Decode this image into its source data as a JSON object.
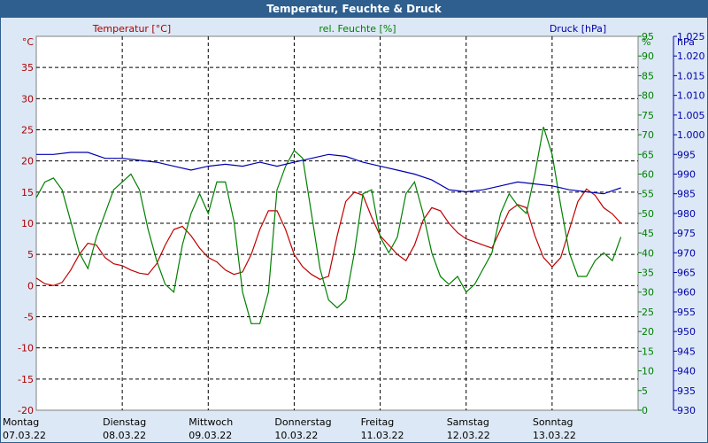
{
  "window": {
    "title": "Temperatur, Feuchte & Druck"
  },
  "chart_data": {
    "type": "line",
    "title": "Temperatur, Feuchte & Druck",
    "legend": {
      "temperature": "Temperatur [°C]",
      "humidity": "rel. Feuchte [%]",
      "pressure": "Druck [hPa]"
    },
    "axes": {
      "temperature": {
        "unit": "°C",
        "min": -20,
        "max": 40,
        "step": 5,
        "color": "#aa0000"
      },
      "humidity": {
        "unit": "%",
        "min": 0,
        "max": 95,
        "step": 5,
        "color": "#008000"
      },
      "pressure": {
        "unit": "hPa",
        "min": 930,
        "max": 1025,
        "step": 5,
        "color": "#0000aa"
      }
    },
    "days": [
      {
        "name": "Montag",
        "date": "07.03.22"
      },
      {
        "name": "Dienstag",
        "date": "08.03.22"
      },
      {
        "name": "Mittwoch",
        "date": "09.03.22"
      },
      {
        "name": "Donnerstag",
        "date": "10.03.22"
      },
      {
        "name": "Freitag",
        "date": "11.03.22"
      },
      {
        "name": "Samstag",
        "date": "12.03.22"
      },
      {
        "name": "Sonntag",
        "date": "13.03.22"
      }
    ],
    "x_range_days": [
      0,
      7
    ],
    "grid": true,
    "series": [
      {
        "name": "Temperatur [°C]",
        "axis": "temperature",
        "color": "#c00000",
        "x": [
          0,
          0.1,
          0.2,
          0.3,
          0.4,
          0.5,
          0.6,
          0.7,
          0.8,
          0.9,
          1.0,
          1.1,
          1.2,
          1.3,
          1.4,
          1.5,
          1.6,
          1.7,
          1.8,
          1.9,
          2.0,
          2.1,
          2.2,
          2.3,
          2.4,
          2.5,
          2.6,
          2.7,
          2.8,
          2.9,
          3.0,
          3.1,
          3.2,
          3.3,
          3.4,
          3.5,
          3.6,
          3.7,
          3.8,
          3.9,
          4.0,
          4.1,
          4.2,
          4.3,
          4.4,
          4.5,
          4.6,
          4.7,
          4.8,
          4.9,
          5.0,
          5.1,
          5.2,
          5.3,
          5.4,
          5.5,
          5.6,
          5.7,
          5.8,
          5.9,
          6.0,
          6.1,
          6.2,
          6.3,
          6.4,
          6.5,
          6.6,
          6.7,
          6.8
        ],
        "y": [
          1.2,
          0.3,
          0,
          0.5,
          2.5,
          5.0,
          6.8,
          6.5,
          4.5,
          3.5,
          3.2,
          2.5,
          2.0,
          1.8,
          3.5,
          6.5,
          9.0,
          9.5,
          8.0,
          6.0,
          4.5,
          3.8,
          2.5,
          1.8,
          2.2,
          5.0,
          9.0,
          12.0,
          12.0,
          9.0,
          5.0,
          3.0,
          1.8,
          1.0,
          1.5,
          8.0,
          13.5,
          15.0,
          14.5,
          11.0,
          8.0,
          6.5,
          5.0,
          4.0,
          6.5,
          10.5,
          12.5,
          12.0,
          10.0,
          8.5,
          7.5,
          7.0,
          6.5,
          6.0,
          9.0,
          12.0,
          13.0,
          12.5,
          8.0,
          4.5,
          3.0,
          4.5,
          9.0,
          13.5,
          15.5,
          14.5,
          12.5,
          11.5,
          10.0
        ]
      },
      {
        "name": "rel. Feuchte [%]",
        "axis": "humidity",
        "color": "#008000",
        "x": [
          0,
          0.1,
          0.2,
          0.3,
          0.4,
          0.5,
          0.6,
          0.7,
          0.8,
          0.9,
          1.0,
          1.1,
          1.2,
          1.3,
          1.4,
          1.5,
          1.6,
          1.7,
          1.8,
          1.9,
          2.0,
          2.1,
          2.2,
          2.3,
          2.4,
          2.5,
          2.6,
          2.7,
          2.8,
          2.9,
          3.0,
          3.1,
          3.2,
          3.3,
          3.4,
          3.5,
          3.6,
          3.7,
          3.8,
          3.9,
          4.0,
          4.1,
          4.2,
          4.3,
          4.4,
          4.5,
          4.6,
          4.7,
          4.8,
          4.9,
          5.0,
          5.1,
          5.2,
          5.3,
          5.4,
          5.5,
          5.6,
          5.7,
          5.8,
          5.9,
          6.0,
          6.1,
          6.2,
          6.3,
          6.4,
          6.5,
          6.6,
          6.7,
          6.8
        ],
        "y": [
          54,
          58,
          59,
          56,
          48,
          40,
          36,
          44,
          50,
          56,
          58,
          60,
          56,
          46,
          38,
          32,
          30,
          42,
          50,
          55,
          50,
          58,
          58,
          48,
          30,
          22,
          22,
          30,
          56,
          62,
          66,
          64,
          50,
          36,
          28,
          26,
          28,
          40,
          55,
          56,
          44,
          40,
          44,
          55,
          58,
          50,
          40,
          34,
          32,
          34,
          30,
          32,
          36,
          40,
          50,
          55,
          52,
          50,
          60,
          72,
          65,
          52,
          40,
          34,
          34,
          38,
          40,
          38,
          44
        ]
      },
      {
        "name": "Druck [hPa]",
        "axis": "pressure",
        "color": "#0000b0",
        "x": [
          0,
          0.2,
          0.4,
          0.6,
          0.8,
          1.0,
          1.2,
          1.4,
          1.6,
          1.8,
          2.0,
          2.2,
          2.4,
          2.6,
          2.8,
          3.0,
          3.2,
          3.4,
          3.6,
          3.8,
          4.0,
          4.2,
          4.4,
          4.6,
          4.8,
          5.0,
          5.2,
          5.4,
          5.6,
          5.8,
          6.0,
          6.2,
          6.4,
          6.6,
          6.8
        ],
        "y": [
          995,
          995,
          995.5,
          995.5,
          994,
          994,
          993.5,
          993,
          992,
          991,
          992,
          992.5,
          992,
          993,
          992,
          993,
          994,
          995,
          994.5,
          993,
          992,
          991,
          990,
          988.5,
          986,
          985.5,
          986,
          987,
          988,
          987.5,
          987,
          986,
          985.5,
          985,
          986.5
        ]
      }
    ]
  }
}
